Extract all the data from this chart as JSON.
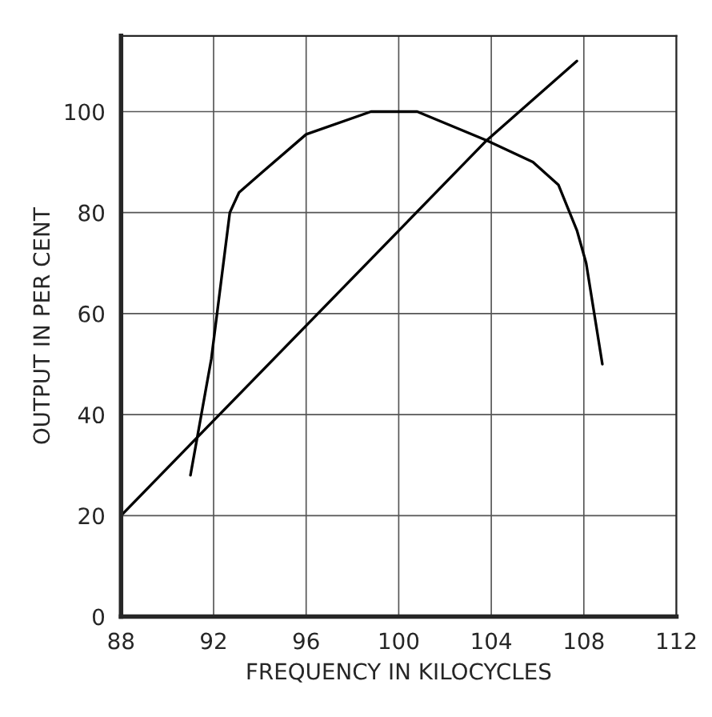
{
  "chart_data": {
    "type": "line",
    "xlabel": "FREQUENCY IN KILOCYCLES",
    "ylabel": "OUTPUT IN PER CENT",
    "series": [
      {
        "color": "#000000",
        "x": [
          91.0,
          91.9,
          92.7,
          93.1,
          94.1,
          96.0,
          98.8,
          100.8,
          103.8,
          105.8,
          106.9,
          107.7,
          108.1,
          108.8
        ],
        "values": [
          28,
          51,
          80,
          84,
          88,
          95.5,
          100,
          100,
          94.3,
          90,
          85.5,
          76.5,
          70,
          50
        ]
      },
      {
        "color": "#000000",
        "x": [
          88,
          103.8,
          107.7
        ],
        "values": [
          20,
          94.3,
          110
        ]
      }
    ],
    "xlim": [
      88,
      112
    ],
    "ylim": [
      0,
      115
    ],
    "xticks": [
      88,
      92,
      96,
      100,
      104,
      108,
      112
    ],
    "yticks": [
      0,
      20,
      40,
      60,
      80,
      100
    ],
    "grid": true,
    "line_style": "solid",
    "marker": "none"
  }
}
